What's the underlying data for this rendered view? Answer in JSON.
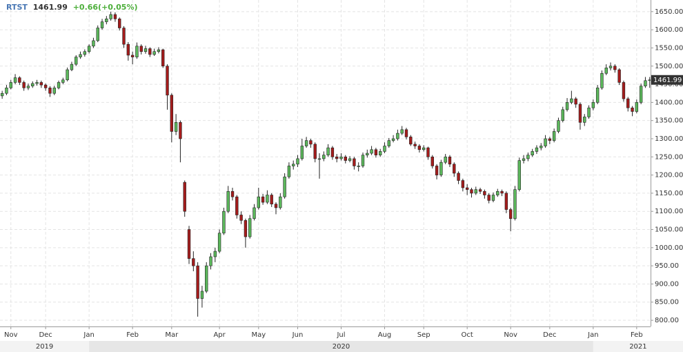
{
  "chart_data": {
    "type": "candlestick",
    "symbol": "RTST",
    "last": 1461.99,
    "change": "+0.66(+0.05%)",
    "colors": {
      "up": "#5cb85c",
      "down": "#a51c1c",
      "outline": "#222222"
    },
    "grid": true,
    "ylim": [
      783,
      1682
    ],
    "yticks": [
      {
        "value": 800,
        "label": "800.00"
      },
      {
        "value": 850,
        "label": "850.00"
      },
      {
        "value": 900,
        "label": "900.00"
      },
      {
        "value": 950,
        "label": "950.00"
      },
      {
        "value": 1000,
        "label": "1000.00"
      },
      {
        "value": 1050,
        "label": "1050.00"
      },
      {
        "value": 1100,
        "label": "1100.00"
      },
      {
        "value": 1150,
        "label": "1150.00"
      },
      {
        "value": 1200,
        "label": "1200.00"
      },
      {
        "value": 1250,
        "label": "1250.00"
      },
      {
        "value": 1300,
        "label": "1300.00"
      },
      {
        "value": 1350,
        "label": "1350.00"
      },
      {
        "value": 1400,
        "label": "1400.00"
      },
      {
        "value": 1450,
        "label": "1450.00"
      },
      {
        "value": 1500,
        "label": "1500.00"
      },
      {
        "value": 1550,
        "label": "1550.00"
      },
      {
        "value": 1600,
        "label": "1600.00"
      },
      {
        "value": 1650,
        "label": "1650.00"
      }
    ],
    "xlim": [
      -0.5,
      149.2
    ],
    "xticks": [
      {
        "value": 2,
        "label": "Nov"
      },
      {
        "value": 10,
        "label": "Dec"
      },
      {
        "value": 20,
        "label": "Jan"
      },
      {
        "value": 30,
        "label": "Feb"
      },
      {
        "value": 39,
        "label": "Mar"
      },
      {
        "value": 50,
        "label": "Apr"
      },
      {
        "value": 59,
        "label": "May"
      },
      {
        "value": 68,
        "label": "Jun"
      },
      {
        "value": 78,
        "label": "Jul"
      },
      {
        "value": 88,
        "label": "Aug"
      },
      {
        "value": 97,
        "label": "Sep"
      },
      {
        "value": 107,
        "label": "Oct"
      },
      {
        "value": 117,
        "label": "Nov"
      },
      {
        "value": 126,
        "label": "Dec"
      },
      {
        "value": 136,
        "label": "Jan"
      },
      {
        "value": 146,
        "label": "Feb"
      }
    ],
    "years": [
      "2019",
      "2020",
      "2021"
    ],
    "values": [
      [
        1418,
        1432,
        1410,
        1425
      ],
      [
        1425,
        1448,
        1420,
        1440
      ],
      [
        1440,
        1462,
        1436,
        1455
      ],
      [
        1455,
        1478,
        1450,
        1468
      ],
      [
        1468,
        1472,
        1448,
        1455
      ],
      [
        1455,
        1460,
        1432,
        1440
      ],
      [
        1440,
        1452,
        1434,
        1445
      ],
      [
        1445,
        1458,
        1440,
        1452
      ],
      [
        1452,
        1462,
        1446,
        1455
      ],
      [
        1455,
        1460,
        1440,
        1448
      ],
      [
        1448,
        1452,
        1432,
        1440
      ],
      [
        1440,
        1445,
        1415,
        1425
      ],
      [
        1425,
        1446,
        1420,
        1440
      ],
      [
        1440,
        1460,
        1436,
        1455
      ],
      [
        1455,
        1468,
        1450,
        1462
      ],
      [
        1462,
        1496,
        1458,
        1490
      ],
      [
        1490,
        1512,
        1486,
        1505
      ],
      [
        1505,
        1530,
        1500,
        1525
      ],
      [
        1525,
        1540,
        1520,
        1532
      ],
      [
        1532,
        1546,
        1526,
        1540
      ],
      [
        1540,
        1560,
        1535,
        1555
      ],
      [
        1555,
        1578,
        1550,
        1570
      ],
      [
        1570,
        1612,
        1566,
        1605
      ],
      [
        1605,
        1630,
        1600,
        1622
      ],
      [
        1622,
        1638,
        1615,
        1630
      ],
      [
        1630,
        1650,
        1625,
        1642
      ],
      [
        1642,
        1648,
        1622,
        1630
      ],
      [
        1630,
        1634,
        1598,
        1605
      ],
      [
        1605,
        1610,
        1550,
        1560
      ],
      [
        1560,
        1566,
        1515,
        1530
      ],
      [
        1530,
        1540,
        1505,
        1525
      ],
      [
        1525,
        1565,
        1520,
        1555
      ],
      [
        1555,
        1560,
        1532,
        1540
      ],
      [
        1540,
        1556,
        1534,
        1548
      ],
      [
        1548,
        1552,
        1525,
        1532
      ],
      [
        1532,
        1548,
        1528,
        1540
      ],
      [
        1540,
        1552,
        1535,
        1545
      ],
      [
        1545,
        1548,
        1495,
        1500
      ],
      [
        1500,
        1505,
        1380,
        1420
      ],
      [
        1420,
        1425,
        1290,
        1320
      ],
      [
        1320,
        1368,
        1310,
        1345
      ],
      [
        1345,
        1350,
        1235,
        1300
      ],
      [
        1180,
        1185,
        1085,
        1100
      ],
      [
        1050,
        1060,
        955,
        970
      ],
      [
        970,
        990,
        935,
        950
      ],
      [
        950,
        960,
        810,
        860
      ],
      [
        860,
        895,
        835,
        880
      ],
      [
        880,
        960,
        875,
        950
      ],
      [
        950,
        985,
        940,
        975
      ],
      [
        975,
        1000,
        960,
        990
      ],
      [
        990,
        1050,
        985,
        1040
      ],
      [
        1040,
        1110,
        1035,
        1100
      ],
      [
        1100,
        1170,
        1095,
        1155
      ],
      [
        1155,
        1165,
        1130,
        1140
      ],
      [
        1140,
        1145,
        1080,
        1090
      ],
      [
        1090,
        1100,
        1065,
        1075
      ],
      [
        1075,
        1080,
        1000,
        1030
      ],
      [
        1030,
        1090,
        1025,
        1080
      ],
      [
        1080,
        1120,
        1075,
        1110
      ],
      [
        1110,
        1165,
        1105,
        1140
      ],
      [
        1140,
        1148,
        1118,
        1125
      ],
      [
        1125,
        1158,
        1120,
        1145
      ],
      [
        1145,
        1150,
        1112,
        1120
      ],
      [
        1120,
        1125,
        1092,
        1110
      ],
      [
        1110,
        1150,
        1105,
        1140
      ],
      [
        1140,
        1205,
        1135,
        1195
      ],
      [
        1195,
        1235,
        1190,
        1225
      ],
      [
        1225,
        1240,
        1215,
        1230
      ],
      [
        1230,
        1255,
        1222,
        1245
      ],
      [
        1245,
        1300,
        1240,
        1280
      ],
      [
        1280,
        1305,
        1275,
        1295
      ],
      [
        1295,
        1300,
        1275,
        1285
      ],
      [
        1285,
        1290,
        1235,
        1245
      ],
      [
        1245,
        1260,
        1190,
        1245
      ],
      [
        1245,
        1265,
        1238,
        1255
      ],
      [
        1255,
        1285,
        1250,
        1275
      ],
      [
        1275,
        1280,
        1242,
        1250
      ],
      [
        1250,
        1258,
        1235,
        1245
      ],
      [
        1245,
        1260,
        1240,
        1250
      ],
      [
        1250,
        1255,
        1232,
        1240
      ],
      [
        1240,
        1252,
        1235,
        1245
      ],
      [
        1245,
        1250,
        1215,
        1225
      ],
      [
        1225,
        1235,
        1210,
        1225
      ],
      [
        1225,
        1262,
        1220,
        1255
      ],
      [
        1255,
        1270,
        1248,
        1260
      ],
      [
        1260,
        1280,
        1255,
        1270
      ],
      [
        1270,
        1275,
        1248,
        1255
      ],
      [
        1255,
        1272,
        1250,
        1265
      ],
      [
        1265,
        1290,
        1260,
        1280
      ],
      [
        1280,
        1302,
        1275,
        1295
      ],
      [
        1295,
        1310,
        1290,
        1300
      ],
      [
        1300,
        1325,
        1295,
        1315
      ],
      [
        1315,
        1335,
        1310,
        1325
      ],
      [
        1325,
        1330,
        1298,
        1305
      ],
      [
        1305,
        1310,
        1280,
        1285
      ],
      [
        1285,
        1292,
        1272,
        1280
      ],
      [
        1280,
        1285,
        1262,
        1270
      ],
      [
        1270,
        1282,
        1265,
        1275
      ],
      [
        1275,
        1278,
        1242,
        1250
      ],
      [
        1250,
        1255,
        1218,
        1225
      ],
      [
        1225,
        1230,
        1188,
        1200
      ],
      [
        1200,
        1242,
        1195,
        1235
      ],
      [
        1235,
        1258,
        1230,
        1250
      ],
      [
        1250,
        1255,
        1222,
        1230
      ],
      [
        1230,
        1235,
        1195,
        1205
      ],
      [
        1205,
        1210,
        1175,
        1185
      ],
      [
        1185,
        1190,
        1155,
        1165
      ],
      [
        1165,
        1175,
        1145,
        1160
      ],
      [
        1160,
        1165,
        1138,
        1150
      ],
      [
        1150,
        1168,
        1145,
        1160
      ],
      [
        1160,
        1165,
        1148,
        1155
      ],
      [
        1155,
        1160,
        1135,
        1145
      ],
      [
        1145,
        1150,
        1122,
        1130
      ],
      [
        1130,
        1152,
        1125,
        1145
      ],
      [
        1145,
        1162,
        1140,
        1155
      ],
      [
        1155,
        1160,
        1142,
        1150
      ],
      [
        1150,
        1155,
        1095,
        1105
      ],
      [
        1105,
        1110,
        1045,
        1080
      ],
      [
        1080,
        1170,
        1075,
        1160
      ],
      [
        1160,
        1248,
        1155,
        1240
      ],
      [
        1240,
        1255,
        1232,
        1245
      ],
      [
        1245,
        1262,
        1238,
        1255
      ],
      [
        1255,
        1272,
        1250,
        1265
      ],
      [
        1265,
        1282,
        1258,
        1275
      ],
      [
        1275,
        1288,
        1268,
        1280
      ],
      [
        1280,
        1310,
        1275,
        1300
      ],
      [
        1300,
        1305,
        1285,
        1295
      ],
      [
        1295,
        1328,
        1290,
        1320
      ],
      [
        1320,
        1358,
        1315,
        1350
      ],
      [
        1350,
        1388,
        1345,
        1380
      ],
      [
        1380,
        1412,
        1375,
        1400
      ],
      [
        1400,
        1432,
        1395,
        1410
      ],
      [
        1410,
        1415,
        1385,
        1395
      ],
      [
        1395,
        1400,
        1325,
        1345
      ],
      [
        1345,
        1368,
        1335,
        1360
      ],
      [
        1360,
        1392,
        1355,
        1385
      ],
      [
        1385,
        1408,
        1378,
        1400
      ],
      [
        1400,
        1448,
        1395,
        1440
      ],
      [
        1440,
        1488,
        1435,
        1480
      ],
      [
        1480,
        1505,
        1475,
        1495
      ],
      [
        1495,
        1510,
        1488,
        1500
      ],
      [
        1500,
        1505,
        1482,
        1490
      ],
      [
        1490,
        1494,
        1448,
        1455
      ],
      [
        1455,
        1460,
        1402,
        1410
      ],
      [
        1410,
        1415,
        1375,
        1385
      ],
      [
        1385,
        1390,
        1362,
        1375
      ],
      [
        1375,
        1408,
        1370,
        1400
      ],
      [
        1400,
        1452,
        1395,
        1445
      ],
      [
        1445,
        1470,
        1440,
        1460
      ],
      [
        1461.33,
        1470,
        1440,
        1461.99
      ]
    ]
  }
}
